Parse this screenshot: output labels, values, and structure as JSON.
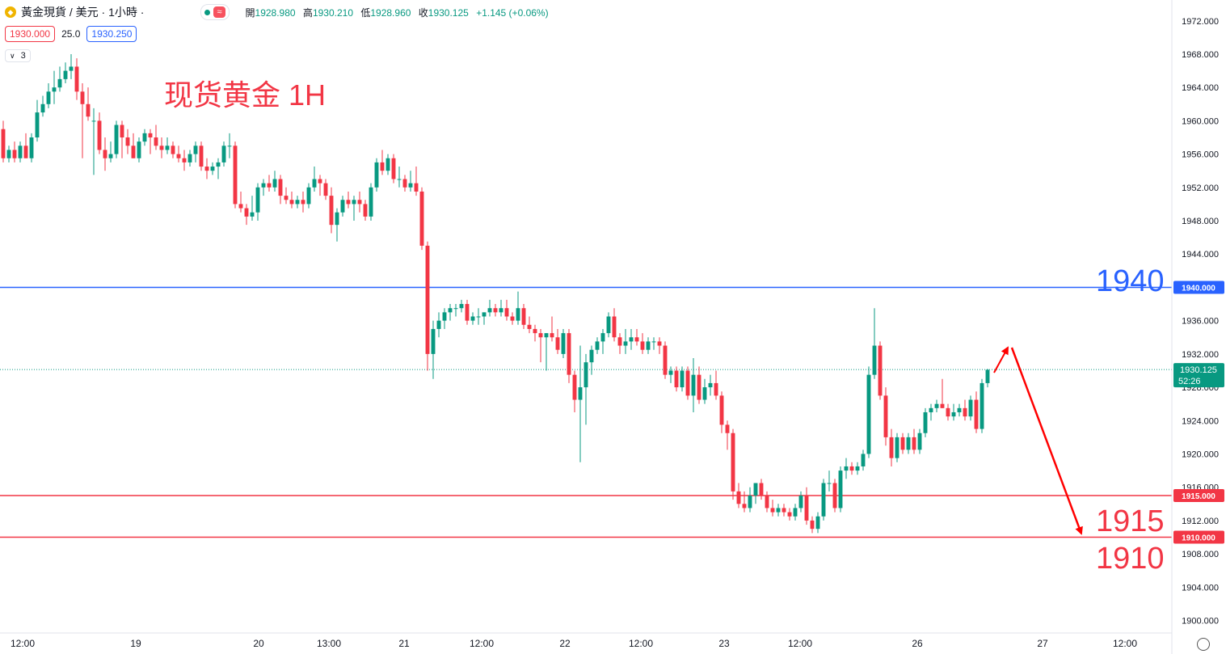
{
  "header": {
    "symbol_title": "黃金現貨 / 美元 · 1小時 ·",
    "logo_icon": "gold-coin-icon",
    "status_icon": "market-open-dot-icon",
    "wave_icon": "≈",
    "ohlc": {
      "open_label": "開",
      "open": "1928.980",
      "high_label": "高",
      "high": "1930.210",
      "low_label": "低",
      "low": "1928.960",
      "close_label": "收",
      "close": "1930.125",
      "change": "+1.145 (+0.06%)"
    },
    "bid": "1930.000",
    "spread": "25.0",
    "ask": "1930.250",
    "indicator_toggle": "3"
  },
  "annotations": {
    "title": "现货黄金 1H",
    "level_1940": "1940",
    "level_1915": "1915",
    "level_1910": "1910"
  },
  "colors": {
    "up": "#089981",
    "down": "#f23645",
    "blue_line": "#2962ff",
    "red_line": "#f23645",
    "arrow": "#ff0000"
  },
  "chart_data": {
    "type": "candlestick",
    "y_axis_ticks": [
      "1972.000",
      "1968.000",
      "1964.000",
      "1960.000",
      "1956.000",
      "1952.000",
      "1948.000",
      "1944.000",
      "1940.000",
      "1936.000",
      "1932.000",
      "1928.000",
      "1924.000",
      "1920.000",
      "1916.000",
      "1912.000",
      "1908.000",
      "1904.000",
      "1900.000"
    ],
    "ylim": [
      1898.5,
      1974.5
    ],
    "x_axis_ticks": [
      "12:00",
      "19",
      "20",
      "13:00",
      "21",
      "12:00",
      "22",
      "12:00",
      "23",
      "12:00",
      "26",
      "27",
      "12:00"
    ],
    "horizontal_lines": [
      {
        "value": 1940.0,
        "label": "1940.000",
        "color": "#2962ff"
      },
      {
        "value": 1915.0,
        "label": "1915.000",
        "color": "#f23645"
      },
      {
        "value": 1910.0,
        "label": "1910.000",
        "color": "#f23645"
      }
    ],
    "last_price": {
      "value": 1930.125,
      "label": "1930.125",
      "countdown": "52:26"
    },
    "candles": [
      [
        1959.0,
        1960.0,
        1955.0,
        1955.5
      ],
      [
        1955.5,
        1957.0,
        1955.0,
        1956.5
      ],
      [
        1956.5,
        1957.5,
        1955.0,
        1955.5
      ],
      [
        1955.5,
        1957.5,
        1955.0,
        1957.0
      ],
      [
        1957.0,
        1958.5,
        1955.5,
        1955.5
      ],
      [
        1955.5,
        1958.5,
        1955.0,
        1958.0
      ],
      [
        1958.0,
        1962.5,
        1957.5,
        1961.0
      ],
      [
        1961.0,
        1963.0,
        1960.5,
        1962.0
      ],
      [
        1962.0,
        1964.5,
        1961.5,
        1963.5
      ],
      [
        1963.5,
        1966.0,
        1962.0,
        1964.0
      ],
      [
        1964.0,
        1966.5,
        1963.5,
        1965.0
      ],
      [
        1965.0,
        1967.0,
        1964.5,
        1966.0
      ],
      [
        1966.0,
        1968.0,
        1965.0,
        1966.5
      ],
      [
        1966.5,
        1967.5,
        1962.5,
        1963.5
      ],
      [
        1963.5,
        1964.5,
        1955.5,
        1962.0
      ],
      [
        1962.0,
        1964.0,
        1960.0,
        1960.5
      ],
      [
        1960.0,
        1961.5,
        1953.5,
        1960.0
      ],
      [
        1960.0,
        1961.0,
        1956.0,
        1956.5
      ],
      [
        1956.5,
        1958.0,
        1954.0,
        1955.5
      ],
      [
        1955.5,
        1957.5,
        1955.0,
        1956.0
      ],
      [
        1956.0,
        1960.0,
        1955.5,
        1959.5
      ],
      [
        1959.5,
        1960.0,
        1955.5,
        1958.0
      ],
      [
        1958.0,
        1959.0,
        1956.0,
        1957.0
      ],
      [
        1957.0,
        1958.5,
        1955.5,
        1955.5
      ],
      [
        1955.5,
        1958.0,
        1955.0,
        1957.5
      ],
      [
        1957.5,
        1959.0,
        1957.0,
        1958.5
      ],
      [
        1958.5,
        1959.0,
        1956.0,
        1958.0
      ],
      [
        1958.0,
        1959.5,
        1956.5,
        1957.0
      ],
      [
        1957.0,
        1958.0,
        1955.5,
        1956.5
      ],
      [
        1956.5,
        1958.0,
        1956.0,
        1957.0
      ],
      [
        1957.0,
        1957.5,
        1955.5,
        1956.0
      ],
      [
        1956.0,
        1957.0,
        1955.0,
        1955.5
      ],
      [
        1955.5,
        1956.5,
        1954.0,
        1955.0
      ],
      [
        1955.0,
        1956.5,
        1954.5,
        1956.0
      ],
      [
        1956.0,
        1957.5,
        1955.0,
        1957.0
      ],
      [
        1957.0,
        1957.5,
        1954.0,
        1954.5
      ],
      [
        1954.5,
        1955.5,
        1953.0,
        1954.0
      ],
      [
        1954.0,
        1955.0,
        1953.5,
        1954.5
      ],
      [
        1954.5,
        1955.5,
        1953.0,
        1955.0
      ],
      [
        1955.0,
        1957.5,
        1954.5,
        1957.0
      ],
      [
        1957.0,
        1958.5,
        1955.5,
        1957.0
      ],
      [
        1957.0,
        1957.5,
        1949.5,
        1950.0
      ],
      [
        1950.0,
        1951.5,
        1949.0,
        1949.5
      ],
      [
        1949.5,
        1950.0,
        1947.5,
        1948.5
      ],
      [
        1948.5,
        1951.0,
        1948.0,
        1949.0
      ],
      [
        1949.0,
        1952.5,
        1948.0,
        1952.0
      ],
      [
        1952.0,
        1953.0,
        1951.0,
        1952.5
      ],
      [
        1952.5,
        1953.5,
        1951.5,
        1952.0
      ],
      [
        1952.0,
        1954.0,
        1951.5,
        1953.0
      ],
      [
        1953.0,
        1953.5,
        1950.0,
        1951.0
      ],
      [
        1951.0,
        1952.0,
        1950.0,
        1950.5
      ],
      [
        1950.5,
        1951.5,
        1949.5,
        1950.0
      ],
      [
        1950.0,
        1951.0,
        1949.5,
        1950.5
      ],
      [
        1950.5,
        1951.5,
        1949.0,
        1950.0
      ],
      [
        1950.0,
        1952.5,
        1949.5,
        1952.0
      ],
      [
        1952.0,
        1954.5,
        1951.5,
        1953.0
      ],
      [
        1953.0,
        1953.5,
        1951.0,
        1952.5
      ],
      [
        1952.5,
        1953.0,
        1950.5,
        1951.0
      ],
      [
        1951.0,
        1952.0,
        1946.5,
        1947.5
      ],
      [
        1947.5,
        1949.5,
        1945.5,
        1949.0
      ],
      [
        1949.0,
        1951.0,
        1948.5,
        1950.5
      ],
      [
        1950.5,
        1951.5,
        1949.5,
        1950.0
      ],
      [
        1950.0,
        1951.0,
        1948.0,
        1950.5
      ],
      [
        1950.5,
        1951.5,
        1949.0,
        1950.0
      ],
      [
        1950.0,
        1950.5,
        1948.0,
        1948.5
      ],
      [
        1948.5,
        1952.5,
        1948.0,
        1952.0
      ],
      [
        1952.0,
        1955.5,
        1951.5,
        1955.0
      ],
      [
        1955.0,
        1956.5,
        1953.5,
        1954.0
      ],
      [
        1954.0,
        1956.0,
        1953.5,
        1955.5
      ],
      [
        1955.5,
        1956.0,
        1952.5,
        1953.0
      ],
      [
        1953.0,
        1954.5,
        1952.0,
        1953.0
      ],
      [
        1953.0,
        1953.5,
        1951.5,
        1952.0
      ],
      [
        1952.0,
        1954.0,
        1951.5,
        1952.5
      ],
      [
        1952.5,
        1954.5,
        1951.0,
        1951.5
      ],
      [
        1951.5,
        1952.0,
        1944.5,
        1945.0
      ],
      [
        1945.0,
        1945.5,
        1930.0,
        1932.0
      ],
      [
        1932.0,
        1936.0,
        1929.0,
        1935.0
      ],
      [
        1935.0,
        1937.0,
        1934.0,
        1936.0
      ],
      [
        1936.0,
        1937.5,
        1935.0,
        1937.0
      ],
      [
        1937.0,
        1938.0,
        1936.0,
        1937.5
      ],
      [
        1937.5,
        1938.0,
        1936.5,
        1937.5
      ],
      [
        1937.5,
        1938.5,
        1937.0,
        1938.0
      ],
      [
        1938.0,
        1938.5,
        1935.5,
        1936.0
      ],
      [
        1936.0,
        1937.0,
        1935.5,
        1936.5
      ],
      [
        1936.5,
        1937.5,
        1935.5,
        1936.5
      ],
      [
        1936.5,
        1937.0,
        1935.5,
        1937.0
      ],
      [
        1937.0,
        1938.5,
        1936.5,
        1937.5
      ],
      [
        1937.5,
        1938.0,
        1936.5,
        1937.0
      ],
      [
        1937.0,
        1938.5,
        1936.5,
        1937.5
      ],
      [
        1937.5,
        1938.5,
        1936.0,
        1936.5
      ],
      [
        1936.5,
        1937.0,
        1935.5,
        1936.0
      ],
      [
        1936.0,
        1939.5,
        1935.5,
        1937.5
      ],
      [
        1937.5,
        1938.0,
        1935.0,
        1935.5
      ],
      [
        1935.5,
        1936.5,
        1934.5,
        1935.0
      ],
      [
        1935.0,
        1935.5,
        1933.5,
        1934.5
      ],
      [
        1934.5,
        1935.0,
        1931.0,
        1934.0
      ],
      [
        1934.0,
        1934.5,
        1930.0,
        1934.5
      ],
      [
        1934.5,
        1936.5,
        1933.5,
        1934.0
      ],
      [
        1934.0,
        1935.0,
        1932.0,
        1932.5
      ],
      [
        1932.0,
        1935.0,
        1931.5,
        1934.5
      ],
      [
        1934.5,
        1935.0,
        1928.5,
        1929.5
      ],
      [
        1929.5,
        1930.0,
        1925.0,
        1926.5
      ],
      [
        1926.5,
        1933.0,
        1919.0,
        1928.0
      ],
      [
        1928.0,
        1932.0,
        1923.5,
        1931.0
      ],
      [
        1931.0,
        1933.0,
        1929.5,
        1932.5
      ],
      [
        1932.5,
        1934.0,
        1932.0,
        1933.5
      ],
      [
        1933.5,
        1935.0,
        1932.0,
        1934.5
      ],
      [
        1934.5,
        1937.0,
        1934.0,
        1936.5
      ],
      [
        1936.5,
        1937.5,
        1933.5,
        1934.0
      ],
      [
        1934.0,
        1934.5,
        1932.0,
        1933.0
      ],
      [
        1933.0,
        1935.0,
        1932.0,
        1933.5
      ],
      [
        1933.5,
        1935.0,
        1932.5,
        1934.0
      ],
      [
        1934.0,
        1935.0,
        1933.0,
        1933.5
      ],
      [
        1933.5,
        1934.5,
        1932.0,
        1932.5
      ],
      [
        1932.5,
        1934.0,
        1932.0,
        1933.5
      ],
      [
        1933.5,
        1934.0,
        1932.5,
        1933.5
      ],
      [
        1933.5,
        1934.0,
        1932.0,
        1933.0
      ],
      [
        1933.0,
        1933.5,
        1929.0,
        1929.5
      ],
      [
        1929.5,
        1930.5,
        1928.5,
        1930.0
      ],
      [
        1930.0,
        1930.5,
        1927.5,
        1928.0
      ],
      [
        1928.0,
        1930.5,
        1927.5,
        1930.0
      ],
      [
        1930.0,
        1930.5,
        1926.5,
        1927.0
      ],
      [
        1927.0,
        1931.5,
        1925.0,
        1929.5
      ],
      [
        1929.5,
        1930.5,
        1926.0,
        1926.5
      ],
      [
        1926.5,
        1929.0,
        1926.0,
        1928.0
      ],
      [
        1928.0,
        1929.5,
        1927.0,
        1928.5
      ],
      [
        1928.5,
        1930.0,
        1926.5,
        1927.0
      ],
      [
        1927.0,
        1927.5,
        1922.5,
        1923.5
      ],
      [
        1923.5,
        1924.0,
        1920.5,
        1922.5
      ],
      [
        1922.5,
        1923.0,
        1914.5,
        1915.5
      ],
      [
        1915.5,
        1916.5,
        1913.5,
        1914.0
      ],
      [
        1914.0,
        1915.5,
        1913.0,
        1913.5
      ],
      [
        1913.5,
        1916.0,
        1913.0,
        1915.0
      ],
      [
        1915.0,
        1916.5,
        1914.0,
        1916.5
      ],
      [
        1916.5,
        1917.0,
        1914.5,
        1915.0
      ],
      [
        1915.0,
        1915.5,
        1913.0,
        1913.5
      ],
      [
        1913.5,
        1914.5,
        1912.5,
        1913.0
      ],
      [
        1913.0,
        1914.0,
        1912.5,
        1913.5
      ],
      [
        1913.5,
        1914.0,
        1912.5,
        1913.0
      ],
      [
        1913.0,
        1913.5,
        1912.0,
        1912.5
      ],
      [
        1912.5,
        1914.0,
        1912.0,
        1913.5
      ],
      [
        1913.5,
        1915.5,
        1913.0,
        1915.0
      ],
      [
        1915.0,
        1916.0,
        1911.5,
        1912.0
      ],
      [
        1912.0,
        1912.5,
        1910.5,
        1911.0
      ],
      [
        1911.0,
        1913.0,
        1910.5,
        1912.5
      ],
      [
        1912.5,
        1917.0,
        1912.0,
        1916.5
      ],
      [
        1916.5,
        1918.0,
        1915.5,
        1916.5
      ],
      [
        1916.5,
        1917.0,
        1913.0,
        1913.5
      ],
      [
        1913.5,
        1918.5,
        1913.0,
        1918.0
      ],
      [
        1918.0,
        1919.5,
        1917.0,
        1918.5
      ],
      [
        1918.5,
        1919.0,
        1917.5,
        1918.0
      ],
      [
        1918.0,
        1919.0,
        1917.5,
        1918.5
      ],
      [
        1918.5,
        1920.5,
        1918.0,
        1920.0
      ],
      [
        1920.0,
        1930.5,
        1919.5,
        1929.5
      ],
      [
        1929.5,
        1937.5,
        1929.0,
        1933.0
      ],
      [
        1933.0,
        1933.5,
        1926.5,
        1927.0
      ],
      [
        1927.0,
        1928.0,
        1921.0,
        1922.0
      ],
      [
        1922.0,
        1923.0,
        1918.5,
        1919.5
      ],
      [
        1919.5,
        1922.5,
        1919.0,
        1922.0
      ],
      [
        1922.0,
        1922.5,
        1920.0,
        1920.5
      ],
      [
        1920.5,
        1922.5,
        1920.0,
        1922.0
      ],
      [
        1922.0,
        1923.0,
        1920.0,
        1920.5
      ],
      [
        1920.5,
        1923.0,
        1920.0,
        1922.5
      ],
      [
        1922.5,
        1925.5,
        1922.0,
        1925.0
      ],
      [
        1925.0,
        1926.0,
        1924.0,
        1925.5
      ],
      [
        1925.5,
        1926.5,
        1925.0,
        1926.0
      ],
      [
        1926.0,
        1929.0,
        1925.5,
        1925.5
      ],
      [
        1925.5,
        1926.0,
        1924.0,
        1924.5
      ],
      [
        1924.5,
        1926.0,
        1924.0,
        1925.0
      ],
      [
        1925.0,
        1926.0,
        1924.5,
        1925.5
      ],
      [
        1925.5,
        1926.5,
        1924.0,
        1924.5
      ],
      [
        1924.5,
        1927.0,
        1924.0,
        1926.5
      ],
      [
        1926.5,
        1927.5,
        1922.5,
        1923.0
      ],
      [
        1923.0,
        1929.0,
        1922.5,
        1928.5
      ],
      [
        1928.5,
        1930.2,
        1928.0,
        1930.1
      ]
    ]
  }
}
